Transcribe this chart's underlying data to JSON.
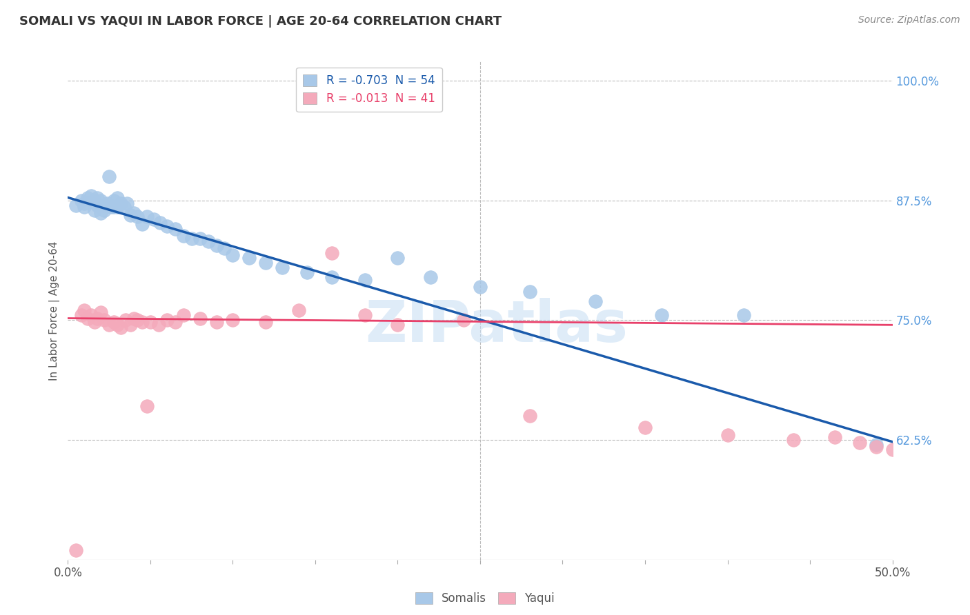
{
  "title": "SOMALI VS YAQUI IN LABOR FORCE | AGE 20-64 CORRELATION CHART",
  "source": "Source: ZipAtlas.com",
  "ylabel": "In Labor Force | Age 20-64",
  "xlim": [
    0.0,
    0.5
  ],
  "ylim": [
    0.5,
    1.02
  ],
  "yticks": [
    0.625,
    0.75,
    0.875,
    1.0
  ],
  "yticklabels": [
    "62.5%",
    "75.0%",
    "87.5%",
    "100.0%"
  ],
  "somali_R": -0.703,
  "somali_N": 54,
  "yaqui_R": -0.013,
  "yaqui_N": 41,
  "somali_color": "#a8c8e8",
  "yaqui_color": "#f4aabb",
  "somali_line_color": "#1a5aab",
  "yaqui_line_color": "#e8406a",
  "watermark": "ZIPatlas",
  "grid_color": "#bbbbbb",
  "somali_x": [
    0.005,
    0.008,
    0.01,
    0.01,
    0.012,
    0.014,
    0.016,
    0.016,
    0.018,
    0.018,
    0.02,
    0.02,
    0.022,
    0.022,
    0.024,
    0.025,
    0.026,
    0.028,
    0.028,
    0.03,
    0.03,
    0.032,
    0.034,
    0.036,
    0.038,
    0.04,
    0.042,
    0.045,
    0.048,
    0.052,
    0.056,
    0.06,
    0.065,
    0.07,
    0.075,
    0.08,
    0.085,
    0.09,
    0.095,
    0.1,
    0.11,
    0.12,
    0.13,
    0.145,
    0.16,
    0.18,
    0.2,
    0.22,
    0.25,
    0.28,
    0.32,
    0.36,
    0.41,
    0.49
  ],
  "somali_y": [
    0.87,
    0.875,
    0.872,
    0.868,
    0.878,
    0.88,
    0.875,
    0.865,
    0.878,
    0.87,
    0.875,
    0.862,
    0.87,
    0.865,
    0.872,
    0.9,
    0.868,
    0.875,
    0.868,
    0.878,
    0.868,
    0.872,
    0.868,
    0.872,
    0.86,
    0.862,
    0.858,
    0.85,
    0.858,
    0.855,
    0.852,
    0.848,
    0.845,
    0.838,
    0.835,
    0.835,
    0.832,
    0.828,
    0.825,
    0.818,
    0.815,
    0.81,
    0.805,
    0.8,
    0.795,
    0.792,
    0.815,
    0.795,
    0.785,
    0.78,
    0.77,
    0.755,
    0.755,
    0.62
  ],
  "yaqui_x": [
    0.005,
    0.008,
    0.01,
    0.012,
    0.014,
    0.016,
    0.018,
    0.02,
    0.022,
    0.025,
    0.028,
    0.03,
    0.032,
    0.035,
    0.038,
    0.04,
    0.042,
    0.045,
    0.048,
    0.05,
    0.055,
    0.06,
    0.065,
    0.07,
    0.08,
    0.09,
    0.1,
    0.12,
    0.14,
    0.16,
    0.18,
    0.2,
    0.24,
    0.28,
    0.35,
    0.4,
    0.44,
    0.465,
    0.48,
    0.49,
    0.5
  ],
  "yaqui_y": [
    0.51,
    0.755,
    0.76,
    0.752,
    0.755,
    0.748,
    0.752,
    0.758,
    0.75,
    0.745,
    0.748,
    0.745,
    0.742,
    0.75,
    0.745,
    0.752,
    0.75,
    0.748,
    0.66,
    0.748,
    0.745,
    0.75,
    0.748,
    0.755,
    0.752,
    0.748,
    0.75,
    0.748,
    0.76,
    0.82,
    0.755,
    0.745,
    0.75,
    0.65,
    0.638,
    0.63,
    0.625,
    0.628,
    0.622,
    0.618,
    0.615
  ],
  "somali_line_x0": 0.0,
  "somali_line_y0": 0.878,
  "somali_line_x1": 0.5,
  "somali_line_y1": 0.623,
  "yaqui_line_x0": 0.0,
  "yaqui_line_y0": 0.752,
  "yaqui_line_x1": 0.5,
  "yaqui_line_y1": 0.745
}
